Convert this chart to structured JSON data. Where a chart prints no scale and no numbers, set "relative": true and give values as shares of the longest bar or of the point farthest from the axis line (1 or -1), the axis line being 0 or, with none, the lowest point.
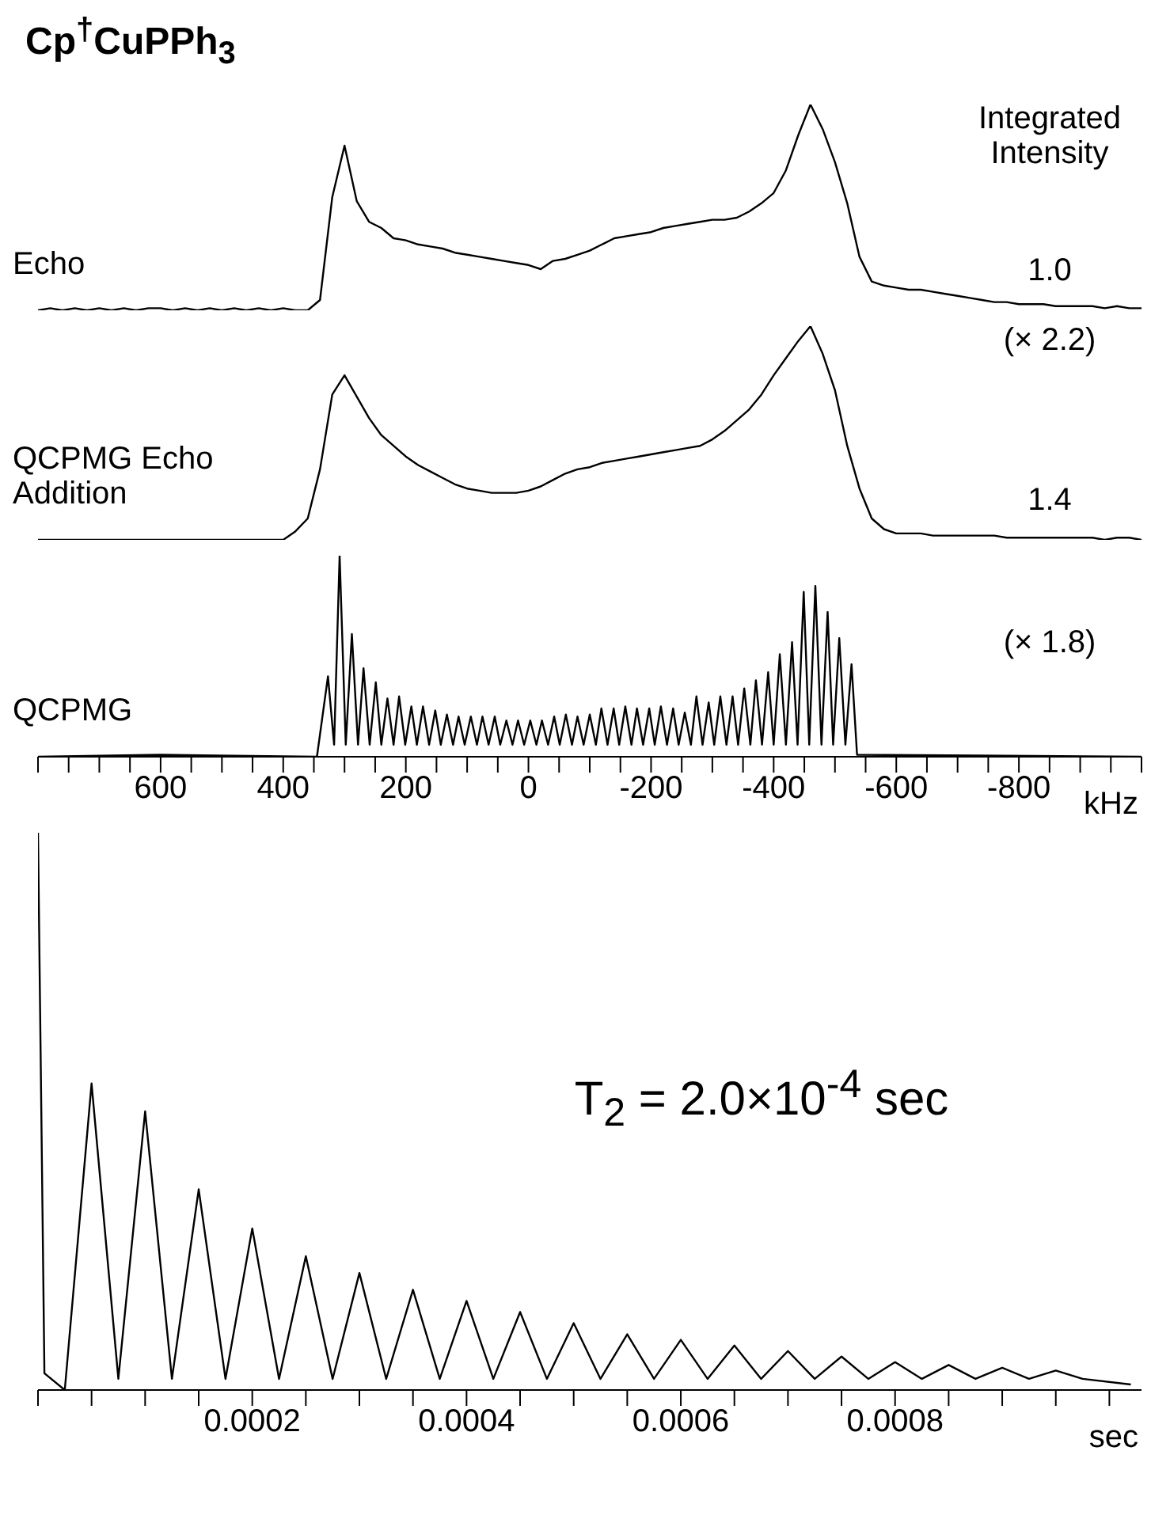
{
  "chart_data": [
    {
      "type": "line",
      "title": "Cp$^{†}$CuPPh$_{3}$",
      "relative": true,
      "tick_labels": false,
      "annotations": [
        "Integrated Intensity",
        "1.0"
      ],
      "categories": [
        null,
        null,
        null,
        null,
        null,
        null,
        null,
        null,
        null,
        null,
        null,
        null,
        null,
        null,
        null,
        null,
        null,
        null,
        null,
        null,
        null,
        null,
        null,
        null,
        null,
        null,
        null,
        null,
        null,
        null,
        null,
        null,
        null,
        null,
        null,
        null,
        null,
        null,
        null,
        null,
        null,
        null,
        null,
        null,
        null,
        null,
        null,
        null,
        null,
        null,
        null,
        null,
        null,
        null,
        null,
        null,
        null,
        null,
        null,
        null,
        null,
        null,
        null,
        null,
        null,
        null,
        null,
        null,
        null,
        null,
        null,
        null,
        null,
        null,
        null,
        null,
        null,
        null,
        null,
        null,
        null,
        null,
        null,
        null,
        null,
        null,
        null,
        null,
        null,
        null,
        null
      ],
      "series": [
        {
          "name": "Echo",
          "color": "#000000",
          "values": [
            0,
            0.01,
            0,
            0.01,
            0,
            0.01,
            0,
            0.01,
            0,
            0.01,
            0.01,
            0,
            0.01,
            0,
            0.01,
            0,
            0.01,
            0,
            0.01,
            0,
            0.01,
            0,
            0,
            0.05,
            0.55,
            0.8,
            0.53,
            0.43,
            0.4,
            0.35,
            0.34,
            0.32,
            0.31,
            0.3,
            0.28,
            0.27,
            0.26,
            0.25,
            0.24,
            0.23,
            0.22,
            0.2,
            0.24,
            0.25,
            0.27,
            0.29,
            0.32,
            0.35,
            0.36,
            0.37,
            0.38,
            0.4,
            0.41,
            0.42,
            0.43,
            0.44,
            0.44,
            0.45,
            0.48,
            0.52,
            0.57,
            0.68,
            0.85,
            1,
            0.88,
            0.72,
            0.52,
            0.26,
            0.14,
            0.12,
            0.11,
            0.1,
            0.1,
            0.09,
            0.08,
            0.07,
            0.06,
            0.05,
            0.04,
            0.04,
            0.03,
            0.03,
            0.03,
            0.02,
            0.02,
            0.02,
            0.02,
            0.01,
            0.02,
            0.01,
            0.01
          ]
        }
      ]
    },
    {
      "type": "line",
      "relative": true,
      "tick_labels": false,
      "annotations": [
        "(× 2.2)",
        "1.4"
      ],
      "categories": [
        null,
        null,
        null,
        null,
        null,
        null,
        null,
        null,
        null,
        null,
        null,
        null,
        null,
        null,
        null,
        null,
        null,
        null,
        null,
        null,
        null,
        null,
        null,
        null,
        null,
        null,
        null,
        null,
        null,
        null,
        null,
        null,
        null,
        null,
        null,
        null,
        null,
        null,
        null,
        null,
        null,
        null,
        null,
        null,
        null,
        null,
        null,
        null,
        null,
        null,
        null,
        null,
        null,
        null,
        null,
        null,
        null,
        null,
        null,
        null,
        null,
        null,
        null,
        null,
        null,
        null,
        null,
        null,
        null,
        null,
        null,
        null,
        null,
        null,
        null,
        null,
        null,
        null,
        null,
        null,
        null,
        null,
        null,
        null,
        null,
        null,
        null,
        null,
        null,
        null,
        null
      ],
      "series": [
        {
          "name": "QCPMG Echo Addition",
          "color": "#000000",
          "values": [
            0,
            0,
            0,
            0,
            0,
            0,
            0,
            0,
            0,
            0,
            0,
            0,
            0,
            0,
            0,
            0,
            0,
            0,
            0,
            0,
            0,
            0.04,
            0.1,
            0.33,
            0.68,
            0.77,
            0.67,
            0.57,
            0.49,
            0.44,
            0.39,
            0.35,
            0.32,
            0.29,
            0.26,
            0.24,
            0.23,
            0.22,
            0.22,
            0.22,
            0.23,
            0.25,
            0.28,
            0.31,
            0.33,
            0.34,
            0.36,
            0.37,
            0.38,
            0.39,
            0.4,
            0.41,
            0.42,
            0.43,
            0.44,
            0.47,
            0.51,
            0.56,
            0.61,
            0.68,
            0.77,
            0.85,
            0.93,
            1,
            0.87,
            0.7,
            0.44,
            0.24,
            0.1,
            0.05,
            0.03,
            0.03,
            0.03,
            0.02,
            0.02,
            0.02,
            0.02,
            0.02,
            0.02,
            0.01,
            0.01,
            0.01,
            0.01,
            0.01,
            0.01,
            0.01,
            0.01,
            0,
            0.01,
            0.01,
            0
          ]
        }
      ]
    },
    {
      "type": "line",
      "relative": true,
      "tick_labels": "x",
      "xlabel": "kHz",
      "xlim": [
        800,
        -1000
      ],
      "annotations": [
        "(× 1.8)"
      ],
      "xticks": [
        {
          "value": 800,
          "label": null
        },
        {
          "value": 750,
          "label": null
        },
        {
          "value": 700,
          "label": null
        },
        {
          "value": 650,
          "label": null
        },
        600,
        {
          "value": 550,
          "label": null
        },
        {
          "value": 500,
          "label": null
        },
        {
          "value": 450,
          "label": null
        },
        400,
        {
          "value": 350,
          "label": null
        },
        {
          "value": 300,
          "label": null
        },
        {
          "value": 250,
          "label": null
        },
        200,
        {
          "value": 150,
          "label": null
        },
        {
          "value": 100,
          "label": null
        },
        {
          "value": 50,
          "label": null
        },
        0,
        {
          "value": -50,
          "label": null
        },
        {
          "value": -100,
          "label": null
        },
        {
          "value": -150,
          "label": null
        },
        -200,
        {
          "value": -250,
          "label": null
        },
        {
          "value": -300,
          "label": null
        },
        {
          "value": -350,
          "label": null
        },
        -400,
        {
          "value": -450,
          "label": null
        },
        {
          "value": -500,
          "label": null
        },
        {
          "value": -550,
          "label": null
        },
        -600,
        {
          "value": -650,
          "label": null
        },
        {
          "value": -700,
          "label": null
        },
        {
          "value": -750,
          "label": null
        },
        -800,
        {
          "value": -850,
          "label": null
        },
        {
          "value": -900,
          "label": null
        },
        {
          "value": -950,
          "label": null
        },
        {
          "value": -1000,
          "label": null
        }
      ],
      "series": [
        {
          "name": "QCPMG",
          "color": "#000000",
          "x": [
            800,
            600,
            345,
            327,
            317,
            308,
            298,
            288,
            278,
            269,
            259,
            249,
            240,
            230,
            220,
            211,
            201,
            191,
            182,
            172,
            162,
            152,
            143,
            133,
            123,
            114,
            104,
            94,
            84,
            75,
            65,
            55,
            46,
            36,
            26,
            17,
            7,
            -3,
            -13,
            -22,
            -32,
            -42,
            -51,
            -61,
            -71,
            -80,
            -90,
            -100,
            -110,
            -119,
            -129,
            -139,
            -148,
            -158,
            -168,
            -177,
            -187,
            -197,
            -206,
            -216,
            -226,
            -236,
            -245,
            -255,
            -265,
            -274,
            -284,
            -294,
            -303,
            -313,
            -323,
            -333,
            -342,
            -352,
            -362,
            -371,
            -381,
            -391,
            -400,
            -410,
            -420,
            -430,
            -439,
            -449,
            -458,
            -468,
            -478,
            -488,
            -497,
            -507,
            -517,
            -527,
            -536,
            -1000
          ],
          "values": [
            0,
            0.01,
            0,
            0.4,
            0.06,
            1,
            0.06,
            0.61,
            0.06,
            0.44,
            0.06,
            0.37,
            0.06,
            0.29,
            0.06,
            0.3,
            0.06,
            0.25,
            0.06,
            0.25,
            0.06,
            0.23,
            0.06,
            0.21,
            0.06,
            0.2,
            0.06,
            0.2,
            0.06,
            0.2,
            0.06,
            0.2,
            0.06,
            0.18,
            0.06,
            0.18,
            0.06,
            0.18,
            0.06,
            0.18,
            0.06,
            0.2,
            0.06,
            0.21,
            0.06,
            0.2,
            0.06,
            0.21,
            0.06,
            0.24,
            0.06,
            0.24,
            0.06,
            0.25,
            0.06,
            0.24,
            0.06,
            0.24,
            0.06,
            0.25,
            0.06,
            0.24,
            0.06,
            0.22,
            0.06,
            0.3,
            0.06,
            0.27,
            0.06,
            0.3,
            0.06,
            0.3,
            0.06,
            0.34,
            0.06,
            0.38,
            0.06,
            0.42,
            0.06,
            0.51,
            0.06,
            0.57,
            0.06,
            0.82,
            0.06,
            0.85,
            0.06,
            0.72,
            0.06,
            0.59,
            0.06,
            0.46,
            0.01,
            0
          ]
        }
      ]
    },
    {
      "type": "line",
      "relative": true,
      "tick_labels": "x",
      "xlabel": "sec",
      "xlim": [
        0,
        0.00103
      ],
      "annotations": [
        "T$_{2}$ = 2.0×10$^{-4}$ sec"
      ],
      "xticks": [
        {
          "value": 0,
          "label": null
        },
        {
          "value": 5e-05,
          "label": null
        },
        {
          "value": 0.0001,
          "label": null
        },
        {
          "value": 0.00015,
          "label": null
        },
        0.0002,
        {
          "value": 0.00025,
          "label": null
        },
        {
          "value": 0.0003,
          "label": null
        },
        {
          "value": 0.00035,
          "label": null
        },
        0.0004,
        {
          "value": 0.00045,
          "label": null
        },
        {
          "value": 0.0005,
          "label": null
        },
        {
          "value": 0.00055,
          "label": null
        },
        0.0006,
        {
          "value": 0.00065,
          "label": null
        },
        {
          "value": 0.0007,
          "label": null
        },
        {
          "value": 0.00075,
          "label": null
        },
        0.0008,
        {
          "value": 0.00085,
          "label": null
        },
        {
          "value": 0.0009,
          "label": null
        },
        {
          "value": 0.00095,
          "label": null
        },
        {
          "value": 0.001,
          "label": null
        }
      ],
      "x": [
        0,
        6e-06,
        2.5e-05,
        5e-05,
        7.5e-05,
        0.0001,
        0.000125,
        0.00015,
        0.000175,
        0.0002,
        0.000225,
        0.00025,
        0.000275,
        0.0003,
        0.000325,
        0.00035,
        0.000375,
        0.0004,
        0.000425,
        0.00045,
        0.000475,
        0.0005,
        0.000525,
        0.00055,
        0.000575,
        0.0006,
        0.000625,
        0.00065,
        0.000675,
        0.0007,
        0.000725,
        0.00075,
        0.000775,
        0.0008,
        0.000825,
        0.00085,
        0.000875,
        0.0009,
        0.000925,
        0.00095,
        0.000975,
        0.00102
      ],
      "values": [
        1,
        0.03,
        0,
        0.55,
        0.02,
        0.5,
        0.02,
        0.36,
        0.02,
        0.29,
        0.02,
        0.24,
        0.02,
        0.21,
        0.02,
        0.18,
        0.02,
        0.16,
        0.02,
        0.14,
        0.02,
        0.12,
        0.02,
        0.1,
        0.02,
        0.09,
        0.02,
        0.08,
        0.02,
        0.07,
        0.02,
        0.06,
        0.02,
        0.05,
        0.02,
        0.045,
        0.02,
        0.04,
        0.02,
        0.035,
        0.02,
        0.01
      ],
      "color": "#000000"
    }
  ]
}
